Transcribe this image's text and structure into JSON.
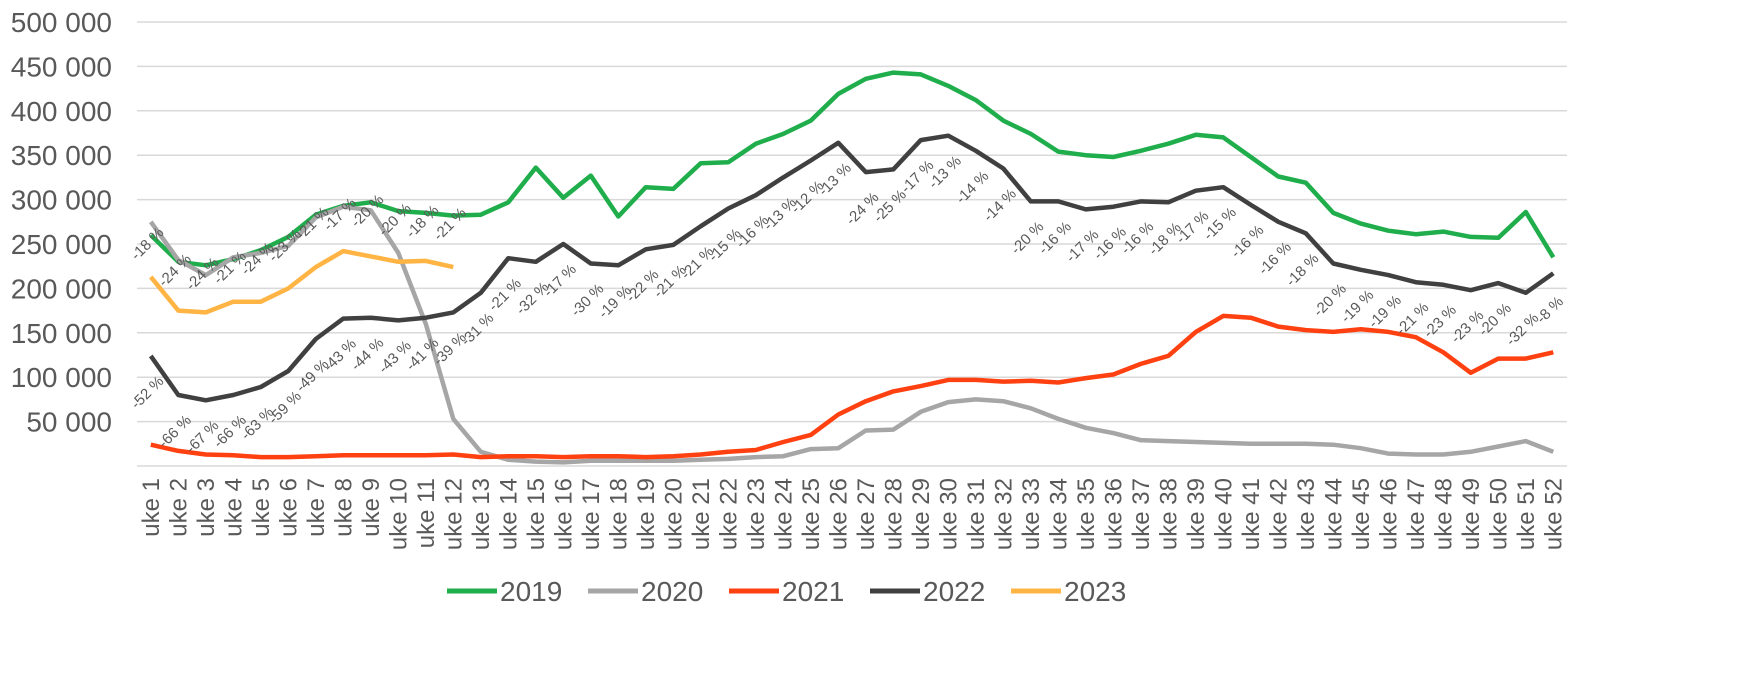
{
  "chart_data": {
    "type": "line",
    "categories": [
      "uke 1",
      "uke 2",
      "uke 3",
      "uke 4",
      "uke 5",
      "uke 6",
      "uke 7",
      "uke 8",
      "uke 9",
      "uke 10",
      "uke 11",
      "uke 12",
      "uke 13",
      "uke 14",
      "uke 15",
      "uke 16",
      "uke 17",
      "uke 18",
      "uke 19",
      "uke 20",
      "uke 21",
      "uke 22",
      "uke 23",
      "uke 24",
      "uke 25",
      "uke 26",
      "uke 27",
      "uke 28",
      "uke 29",
      "uke 30",
      "uke 31",
      "uke 32",
      "uke 33",
      "uke 34",
      "uke 35",
      "uke 36",
      "uke 37",
      "uke 38",
      "uke 39",
      "uke 40",
      "uke 41",
      "uke 42",
      "uke 43",
      "uke 44",
      "uke 45",
      "uke 46",
      "uke 47",
      "uke 48",
      "uke 49",
      "uke 50",
      "uke 51",
      "uke 52"
    ],
    "ylim": [
      0,
      500000
    ],
    "yticks": [
      {
        "value": 50000,
        "label": "50 000"
      },
      {
        "value": 100000,
        "label": "100 000"
      },
      {
        "value": 150000,
        "label": "150 000"
      },
      {
        "value": 200000,
        "label": "200 000"
      },
      {
        "value": 250000,
        "label": "250 000"
      },
      {
        "value": 300000,
        "label": "300 000"
      },
      {
        "value": 350000,
        "label": "350 000"
      },
      {
        "value": 400000,
        "label": "400 000"
      },
      {
        "value": 450000,
        "label": "450 000"
      },
      {
        "value": 500000,
        "label": "500 000"
      }
    ],
    "grid": true,
    "legend": "bottom",
    "series": [
      {
        "name": "2019",
        "color": "#1fae4b",
        "values": [
          260000,
          230000,
          226000,
          233000,
          243000,
          258000,
          283000,
          293000,
          297000,
          287000,
          285000,
          282000,
          283000,
          297000,
          336000,
          302000,
          327000,
          281000,
          314000,
          312000,
          341000,
          342000,
          363000,
          374000,
          389000,
          419000,
          436000,
          443000,
          441000,
          428000,
          412000,
          389000,
          374000,
          354000,
          350000,
          348000,
          355000,
          363000,
          373000,
          370000,
          348000,
          326000,
          319000,
          285000,
          273000,
          265000,
          261000,
          264000,
          258000,
          257000,
          286000,
          235000
        ]
      },
      {
        "name": "2020",
        "color": "#a6a6a6",
        "values": [
          275000,
          232000,
          215000,
          235000,
          240000,
          248000,
          280000,
          292000,
          288000,
          240000,
          160000,
          53000,
          16000,
          7000,
          5000,
          4000,
          6000,
          6000,
          6000,
          6000,
          7000,
          8000,
          10000,
          11000,
          19000,
          20000,
          40000,
          41000,
          61000,
          72000,
          75000,
          73000,
          65000,
          53000,
          43000,
          37000,
          29000,
          28000,
          27000,
          26000,
          25000,
          25000,
          25000,
          24000,
          20000,
          14000,
          13000,
          13000,
          16000,
          22000,
          28000,
          16000
        ]
      },
      {
        "name": "2021",
        "color": "#ff4010",
        "values": [
          24000,
          17000,
          13000,
          12000,
          10000,
          10000,
          11000,
          12000,
          12000,
          12000,
          12000,
          13000,
          10000,
          11000,
          11000,
          10000,
          11000,
          11000,
          10000,
          11000,
          13000,
          16000,
          18000,
          27000,
          35000,
          58000,
          73000,
          84000,
          90000,
          97000,
          97000,
          95000,
          96000,
          94000,
          99000,
          103000,
          115000,
          124000,
          151000,
          169000,
          167000,
          157000,
          153000,
          151000,
          154000,
          151000,
          145000,
          128000,
          105000,
          121000,
          121000,
          128000
        ]
      },
      {
        "name": "2022",
        "color": "#404040",
        "values": [
          124000,
          80000,
          74000,
          80000,
          89000,
          107000,
          143000,
          166000,
          167000,
          164000,
          167000,
          173000,
          195000,
          234000,
          230000,
          250000,
          228000,
          226000,
          244000,
          249000,
          270000,
          290000,
          305000,
          325000,
          344000,
          364000,
          331000,
          334000,
          367000,
          372000,
          355000,
          335000,
          298000,
          298000,
          289000,
          292000,
          298000,
          297000,
          310000,
          314000,
          294000,
          275000,
          262000,
          228000,
          221000,
          215000,
          207000,
          204000,
          198000,
          206000,
          195000,
          217000
        ],
        "change_labels": [
          "-52 %",
          "-66 %",
          "-67 %",
          "-66 %",
          "-63 %",
          "-59 %",
          "-49 %",
          "-43 %",
          "-44 %",
          "-43 %",
          "-41 %",
          "-39 %",
          "-31 %",
          "-21 %",
          "-32 %",
          "-17 %",
          "-30 %",
          "-19 %",
          "-22 %",
          "-21 %",
          "-21 %",
          "-15 %",
          "-16 %",
          "-13 %",
          "-12 %",
          "-13 %",
          "-24 %",
          "-25 %",
          "-17 %",
          "-13 %",
          "-14 %",
          "-14 %",
          "-20 %",
          "-16 %",
          "-17 %",
          "-16 %",
          "-16 %",
          "-18 %",
          "-17 %",
          "-15 %",
          "-16 %",
          "-16 %",
          "-18 %",
          "-20 %",
          "-19 %",
          "-19 %",
          "-21 %",
          "-23 %",
          "-23 %",
          "-20 %",
          "-32 %",
          "-8 %"
        ]
      },
      {
        "name": "2023",
        "color": "#ffb444",
        "values": [
          213000,
          175000,
          173000,
          185000,
          185000,
          200000,
          224000,
          242000,
          236000,
          230000,
          231000,
          224000,
          null,
          null,
          null,
          null,
          null,
          null,
          null,
          null,
          null,
          null,
          null,
          null,
          null,
          null,
          null,
          null,
          null,
          null,
          null,
          null,
          null,
          null,
          null,
          null,
          null,
          null,
          null,
          null,
          null,
          null,
          null,
          null,
          null,
          null,
          null,
          null,
          null,
          null,
          null,
          null
        ],
        "change_labels": [
          "-18 %",
          "-24 %",
          "-24 %",
          "-21 %",
          "-24 %",
          "-23 %",
          "-21 %",
          "-17 %",
          "-20 %",
          "-20 %",
          "-18 %",
          "-21 %"
        ]
      }
    ]
  }
}
